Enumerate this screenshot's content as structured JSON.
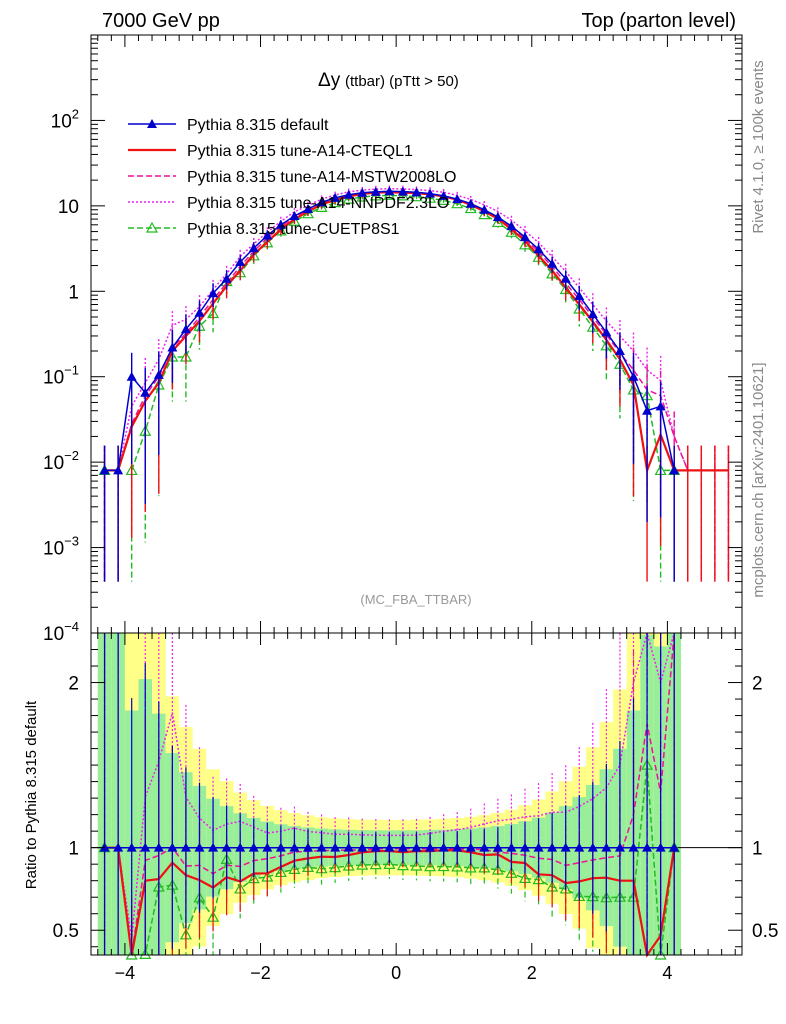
{
  "header": {
    "left": "7000 GeV pp",
    "right": "Top (parton level)"
  },
  "side": {
    "rivet": "Rivet 4.1.0, ≥ 100k events",
    "mcplots": "mcplots.cern.ch [arXiv:2401.10621]"
  },
  "chart_data": {
    "type": "line",
    "title": "Δy",
    "title_suffix": "(ttbar) (pTtt > 50)",
    "watermark": "(MC_FBA_TTBAR)",
    "xlim": [
      -4.5,
      5.1
    ],
    "main": {
      "yscale": "log",
      "ylim": [
        0.0001,
        1000
      ],
      "ytick_labels": [
        {
          "base": "10",
          "exp": "−4",
          "v": 0.0001
        },
        {
          "base": "10",
          "exp": "−3",
          "v": 0.001
        },
        {
          "base": "10",
          "exp": "−2",
          "v": 0.01
        },
        {
          "base": "10",
          "exp": "−1",
          "v": 0.1
        },
        {
          "base": "1",
          "exp": "",
          "v": 1
        },
        {
          "base": "10",
          "exp": "",
          "v": 10
        },
        {
          "base": "10",
          "exp": "2",
          "v": 100
        }
      ]
    },
    "ratio": {
      "ylabel": "Ratio to Pythia 8.315 default",
      "ylim": [
        0.35,
        2.3
      ],
      "ytick_labels": [
        {
          "label": "0.5",
          "v": 0.5
        },
        {
          "label": "1",
          "v": 1
        },
        {
          "label": "2",
          "v": 2
        }
      ]
    },
    "xtick_labels": [
      {
        "label": "−4",
        "v": -4
      },
      {
        "label": "−2",
        "v": -2
      },
      {
        "label": "0",
        "v": 0
      },
      {
        "label": "2",
        "v": 2
      },
      {
        "label": "4",
        "v": 4
      }
    ],
    "x": [
      -4.3,
      -4.1,
      -3.9,
      -3.7,
      -3.5,
      -3.3,
      -3.1,
      -2.9,
      -2.7,
      -2.5,
      -2.3,
      -2.1,
      -1.9,
      -1.7,
      -1.5,
      -1.3,
      -1.1,
      -0.9,
      -0.7,
      -0.5,
      -0.3,
      -0.1,
      0.1,
      0.3,
      0.5,
      0.7,
      0.9,
      1.1,
      1.3,
      1.5,
      1.7,
      1.9,
      2.1,
      2.3,
      2.5,
      2.7,
      2.9,
      3.1,
      3.3,
      3.5,
      3.7,
      3.9,
      4.1,
      4.3,
      4.5,
      4.7,
      4.9
    ],
    "series": [
      {
        "name": "Pythia 8.315 default",
        "color": "#0000cc",
        "dash": "solid",
        "marker": "filled-triangle",
        "values": [
          0.008,
          0.008,
          0.1,
          0.065,
          0.105,
          0.22,
          0.36,
          0.56,
          0.95,
          1.4,
          2.2,
          3.2,
          4.5,
          6.0,
          7.6,
          9.2,
          11.0,
          12.4,
          13.5,
          14.2,
          14.6,
          14.8,
          14.7,
          14.4,
          13.9,
          13.1,
          12.0,
          10.6,
          9.0,
          7.4,
          5.8,
          4.3,
          3.1,
          2.1,
          1.4,
          0.88,
          0.54,
          0.33,
          0.2,
          0.1,
          0.04,
          0.045,
          0.008,
          null,
          null,
          null,
          null
        ]
      },
      {
        "name": "Pythia 8.315 tune-A14-CTEQL1",
        "color": "#ee1111",
        "dash": "solid",
        "marker": "none",
        "values": [
          0.008,
          0.008,
          0.026,
          0.052,
          0.085,
          0.2,
          0.3,
          0.45,
          0.72,
          1.15,
          1.75,
          2.7,
          3.8,
          5.3,
          7.0,
          8.6,
          10.4,
          11.7,
          12.9,
          13.8,
          14.3,
          14.5,
          14.3,
          14.1,
          13.6,
          12.9,
          11.8,
          10.3,
          8.6,
          7.1,
          5.3,
          3.9,
          2.6,
          1.75,
          1.1,
          0.7,
          0.44,
          0.27,
          0.16,
          0.08,
          0.008,
          0.021,
          0.008,
          0.008,
          0.008,
          0.008,
          0.008
        ]
      },
      {
        "name": "Pythia 8.315 tune-A14-MSTW2008LO",
        "color": "#ee1199",
        "dash": "dashed",
        "marker": "none",
        "values": [
          0.008,
          0.008,
          0.028,
          0.06,
          0.1,
          0.22,
          0.32,
          0.5,
          0.8,
          1.25,
          1.95,
          2.95,
          4.2,
          5.7,
          7.4,
          9.0,
          10.8,
          12.2,
          13.3,
          14.0,
          14.5,
          14.7,
          14.6,
          14.3,
          13.8,
          13.0,
          11.9,
          10.5,
          8.9,
          7.2,
          5.6,
          4.1,
          2.9,
          1.95,
          1.25,
          0.8,
          0.5,
          0.31,
          0.19,
          0.12,
          0.07,
          0.06,
          0.02,
          0.008,
          0.008,
          0.008,
          0.008
        ]
      },
      {
        "name": "Pythia 8.315 tune-A14-NNPDF2.3LO",
        "color": "#ee22ee",
        "dash": "dotted",
        "marker": "none",
        "values": [
          0.008,
          0.008,
          0.045,
          0.085,
          0.16,
          0.4,
          0.47,
          0.66,
          1.05,
          1.6,
          2.55,
          3.6,
          4.9,
          6.6,
          8.5,
          10.1,
          12.0,
          13.4,
          14.6,
          15.3,
          15.7,
          15.9,
          15.8,
          15.5,
          15.1,
          14.4,
          13.3,
          11.9,
          10.3,
          8.6,
          6.8,
          5.1,
          3.7,
          2.55,
          1.7,
          1.1,
          0.7,
          0.45,
          0.3,
          0.2,
          0.12,
          0.09,
          0.02,
          0.008,
          0.008,
          0.008,
          0.008
        ]
      },
      {
        "name": "Pythia 8.315 tune-CUETP8S1",
        "color": "#22bb22",
        "dash": "dashed",
        "marker": "open-triangle",
        "values": [
          0.008,
          null,
          0.008,
          0.023,
          0.08,
          0.17,
          0.17,
          0.39,
          0.55,
          1.3,
          1.65,
          2.6,
          3.7,
          5.1,
          6.6,
          8.1,
          9.6,
          10.9,
          12.0,
          12.7,
          13.1,
          13.3,
          13.1,
          12.8,
          12.3,
          11.6,
          10.6,
          9.3,
          7.9,
          6.4,
          4.9,
          3.5,
          2.5,
          1.6,
          1.05,
          0.62,
          0.38,
          0.23,
          0.14,
          0.07,
          0.06,
          0.008,
          0.008,
          null,
          null,
          null,
          null
        ]
      }
    ]
  }
}
